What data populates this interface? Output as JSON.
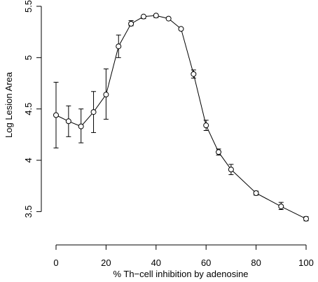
{
  "chart_data": {
    "type": "line",
    "title": "",
    "xlabel": "% Th−cell inhibition by adenosine",
    "ylabel": "Log Lesion Area",
    "xlim": [
      0,
      100
    ],
    "ylim": [
      3.38,
      5.5
    ],
    "x_ticks": [
      0,
      20,
      40,
      60,
      80,
      100
    ],
    "x_tick_labels": [
      "0",
      "20",
      "40",
      "60",
      "80",
      "100"
    ],
    "y_ticks": [
      3.5,
      4,
      4.5,
      5,
      5.5
    ],
    "y_tick_labels": [
      "3.5",
      "4",
      "4.5",
      "5",
      "5.5"
    ],
    "grid": false,
    "legend": "none",
    "marker": "open-circle",
    "error_bars": true,
    "color": "#000000",
    "series": [
      {
        "x": [
          0,
          5,
          10,
          15,
          20,
          25,
          30,
          35,
          40,
          45,
          50,
          55,
          60,
          65,
          70,
          80,
          90,
          100
        ],
        "y": [
          4.44,
          4.38,
          4.33,
          4.47,
          4.64,
          5.11,
          5.33,
          5.4,
          5.41,
          5.38,
          5.28,
          4.84,
          4.34,
          4.08,
          3.91,
          3.68,
          3.55,
          3.43
        ],
        "err_low": [
          4.12,
          4.23,
          4.17,
          4.27,
          4.4,
          5.0,
          5.31,
          5.38,
          5.39,
          5.37,
          5.27,
          4.8,
          4.29,
          4.05,
          3.86,
          3.66,
          3.52,
          3.41
        ],
        "err_high": [
          4.76,
          4.53,
          4.5,
          4.67,
          4.89,
          5.22,
          5.36,
          5.41,
          5.42,
          5.39,
          5.29,
          4.88,
          4.39,
          4.11,
          3.96,
          3.7,
          3.59,
          3.45
        ]
      }
    ]
  }
}
